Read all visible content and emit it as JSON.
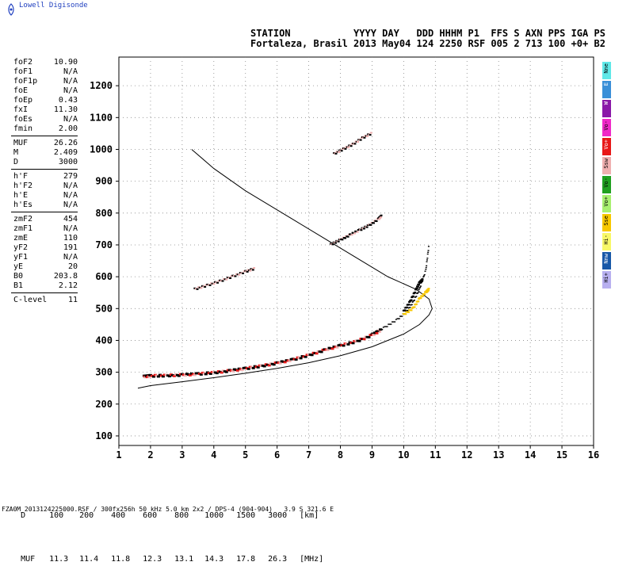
{
  "app": {
    "logo_text": "Lowell Digisonde"
  },
  "header": {
    "line1": "STATION YYYY DAY DDD HHHM P1 FFS S AXN PPS IGA PS",
    "line1_display": "STATION           YYYY DAY   DDD HHHM P1  FFS S AXN PPS IGA PS",
    "line2": "Fortaleza, Brasil 2013 May04 124 2250 RSF 005 2 713 100 +0+ B2"
  },
  "params": [
    {
      "name": "foF2",
      "value": "10.90"
    },
    {
      "name": "foF1",
      "value": "N/A"
    },
    {
      "name": "foF1p",
      "value": "N/A"
    },
    {
      "name": "foE",
      "value": "N/A"
    },
    {
      "name": "foEp",
      "value": "0.43"
    },
    {
      "name": "fxI",
      "value": "11.30"
    },
    {
      "name": "foEs",
      "value": "N/A"
    },
    {
      "name": "fmin",
      "value": "2.00"
    },
    {
      "sep": true
    },
    {
      "name": "MUF",
      "value": "26.26"
    },
    {
      "name": "M",
      "value": "2.409"
    },
    {
      "name": "D",
      "value": "3000"
    },
    {
      "sep": true
    },
    {
      "name": "h'F",
      "value": "279"
    },
    {
      "name": "h'F2",
      "value": "N/A"
    },
    {
      "name": "h'E",
      "value": "N/A"
    },
    {
      "name": "h'Es",
      "value": "N/A"
    },
    {
      "sep": true
    },
    {
      "name": "zmF2",
      "value": "454"
    },
    {
      "name": "zmF1",
      "value": "N/A"
    },
    {
      "name": "zmE",
      "value": "110"
    },
    {
      "name": "yF2",
      "value": "191"
    },
    {
      "name": "yF1",
      "value": "N/A"
    },
    {
      "name": "yE",
      "value": "20"
    },
    {
      "name": "B0",
      "value": "203.8"
    },
    {
      "name": "B1",
      "value": "2.12"
    },
    {
      "sep": true
    },
    {
      "name": "C-level",
      "value": "11"
    }
  ],
  "legend": [
    {
      "label": "Nne",
      "color": "#5fe8e8"
    },
    {
      "label": "E",
      "color": "#3a8fd8"
    },
    {
      "label": "W",
      "color": "#8a18a8"
    },
    {
      "label": "Vo-",
      "color": "#f028c8"
    },
    {
      "label": "Vo+",
      "color": "#e81818"
    },
    {
      "label": "Ssw",
      "color": "#f0b0b0"
    },
    {
      "label": "Vo-",
      "color": "#20a020"
    },
    {
      "label": "Vo+",
      "color": "#a8f070"
    },
    {
      "label": "Sse",
      "color": "#f8c800"
    },
    {
      "label": "Hi-",
      "color": "#f8f868"
    },
    {
      "label": "Nnw",
      "color": "#1858a8"
    },
    {
      "label": "Hi+",
      "color": "#b8b0f0"
    }
  ],
  "muf_table": {
    "d_label": "D",
    "muf_label": "MUF",
    "d_values": [
      "100",
      "200",
      "400",
      "600",
      "800",
      "1000",
      "1500",
      "3000"
    ],
    "muf_values": [
      "11.3",
      "11.4",
      "11.8",
      "12.3",
      "13.1",
      "14.3",
      "17.8",
      "26.3"
    ],
    "d_unit": "[km]",
    "muf_unit": "[MHz]"
  },
  "footer": "FZA0M_2013124225000.RSF / 300fx256h 50 kHz 5.0 km 2x2 / DPS-4 (904-904)   3.9 S 321.6 E",
  "chart_data": {
    "type": "scatter",
    "title": "",
    "xlabel": "",
    "ylabel": "",
    "xlim": [
      1,
      16
    ],
    "ylim": [
      70,
      1290
    ],
    "xticks": [
      1,
      2,
      3,
      4,
      5,
      6,
      7,
      8,
      9,
      10,
      11,
      12,
      13,
      14,
      15,
      16
    ],
    "yticks": [
      100,
      200,
      300,
      400,
      500,
      600,
      700,
      800,
      900,
      1000,
      1100,
      1200
    ],
    "grid": true,
    "profile_curve": {
      "name": "",
      "x": [
        1.6,
        2.0,
        3.0,
        4.0,
        5.0,
        6.0,
        7.0,
        8.0,
        9.0,
        10.0,
        10.5,
        10.8,
        10.9,
        10.8,
        10.4,
        9.5,
        8.5,
        7.5,
        6.5,
        5.0,
        4.0,
        3.3
      ],
      "y": [
        250,
        258,
        270,
        283,
        297,
        312,
        330,
        352,
        380,
        420,
        450,
        480,
        500,
        530,
        560,
        600,
        660,
        720,
        780,
        870,
        940,
        1000
      ]
    },
    "ordinary_trace_F": {
      "x": [
        1.8,
        2.0,
        2.5,
        3.0,
        3.5,
        4.0,
        4.5,
        5.0,
        5.5,
        6.0,
        6.5,
        7.0,
        7.5,
        8.0,
        8.5,
        9.0,
        9.3
      ],
      "y": [
        285,
        287,
        288,
        290,
        293,
        297,
        303,
        310,
        318,
        327,
        338,
        352,
        368,
        382,
        395,
        415,
        432
      ]
    },
    "extraordinary_trace_F": {
      "x": [
        9.0,
        9.4,
        9.8,
        10.1,
        10.3,
        10.5,
        10.7,
        10.8
      ],
      "y": [
        420,
        440,
        465,
        490,
        520,
        560,
        620,
        700
      ]
    },
    "second_hop_trace": {
      "x": [
        3.4,
        3.8,
        4.2,
        4.6,
        5.0,
        5.3
      ],
      "y": [
        560,
        572,
        585,
        600,
        615,
        625
      ]
    },
    "multi_hop_trace": {
      "x": [
        7.7,
        8.0,
        8.3,
        8.6,
        8.9,
        9.2,
        9.3
      ],
      "y": [
        700,
        715,
        730,
        745,
        760,
        780,
        790
      ]
    },
    "third_hop_trace": {
      "x": [
        7.8,
        8.1,
        8.4,
        8.7,
        9.0
      ],
      "y": [
        985,
        1000,
        1015,
        1035,
        1050
      ]
    },
    "x_trace_upper": {
      "x": [
        10.0,
        10.2,
        10.4,
        10.5,
        10.6
      ],
      "y": [
        490,
        520,
        560,
        580,
        590
      ]
    },
    "x_trace_yellow": {
      "x": [
        10.0,
        10.3,
        10.5,
        10.7,
        10.8
      ],
      "y": [
        480,
        500,
        530,
        550,
        560
      ]
    }
  }
}
